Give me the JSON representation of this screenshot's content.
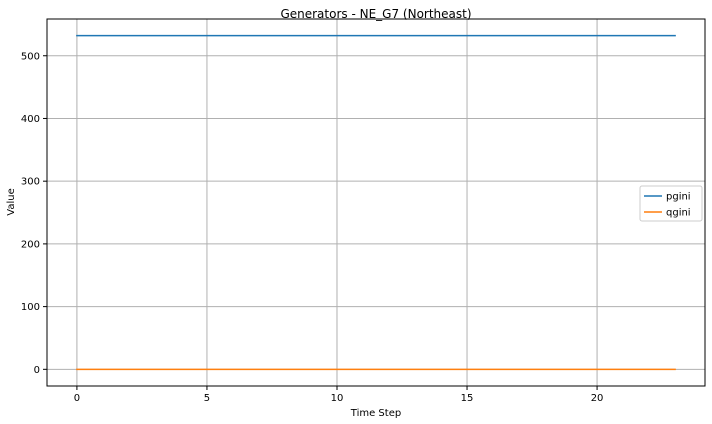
{
  "chart_data": {
    "type": "line",
    "title": "Generators - NE_G7 (Northeast)",
    "xlabel": "Time Step",
    "ylabel": "Value",
    "xlim": [
      -1.15,
      24.15
    ],
    "ylim": [
      -26.6,
      558.6
    ],
    "xticks": [
      0,
      5,
      10,
      15,
      20
    ],
    "yticks": [
      0,
      100,
      200,
      300,
      400,
      500
    ],
    "grid": true,
    "legend_position": "center-right",
    "x": [
      0,
      1,
      2,
      3,
      4,
      5,
      6,
      7,
      8,
      9,
      10,
      11,
      12,
      13,
      14,
      15,
      16,
      17,
      18,
      19,
      20,
      21,
      22,
      23
    ],
    "series": [
      {
        "name": "pgini",
        "color": "#1f77b4",
        "values": [
          532,
          532,
          532,
          532,
          532,
          532,
          532,
          532,
          532,
          532,
          532,
          532,
          532,
          532,
          532,
          532,
          532,
          532,
          532,
          532,
          532,
          532,
          532,
          532
        ]
      },
      {
        "name": "qgini",
        "color": "#ff7f0e",
        "values": [
          0,
          0,
          0,
          0,
          0,
          0,
          0,
          0,
          0,
          0,
          0,
          0,
          0,
          0,
          0,
          0,
          0,
          0,
          0,
          0,
          0,
          0,
          0,
          0
        ]
      }
    ]
  }
}
